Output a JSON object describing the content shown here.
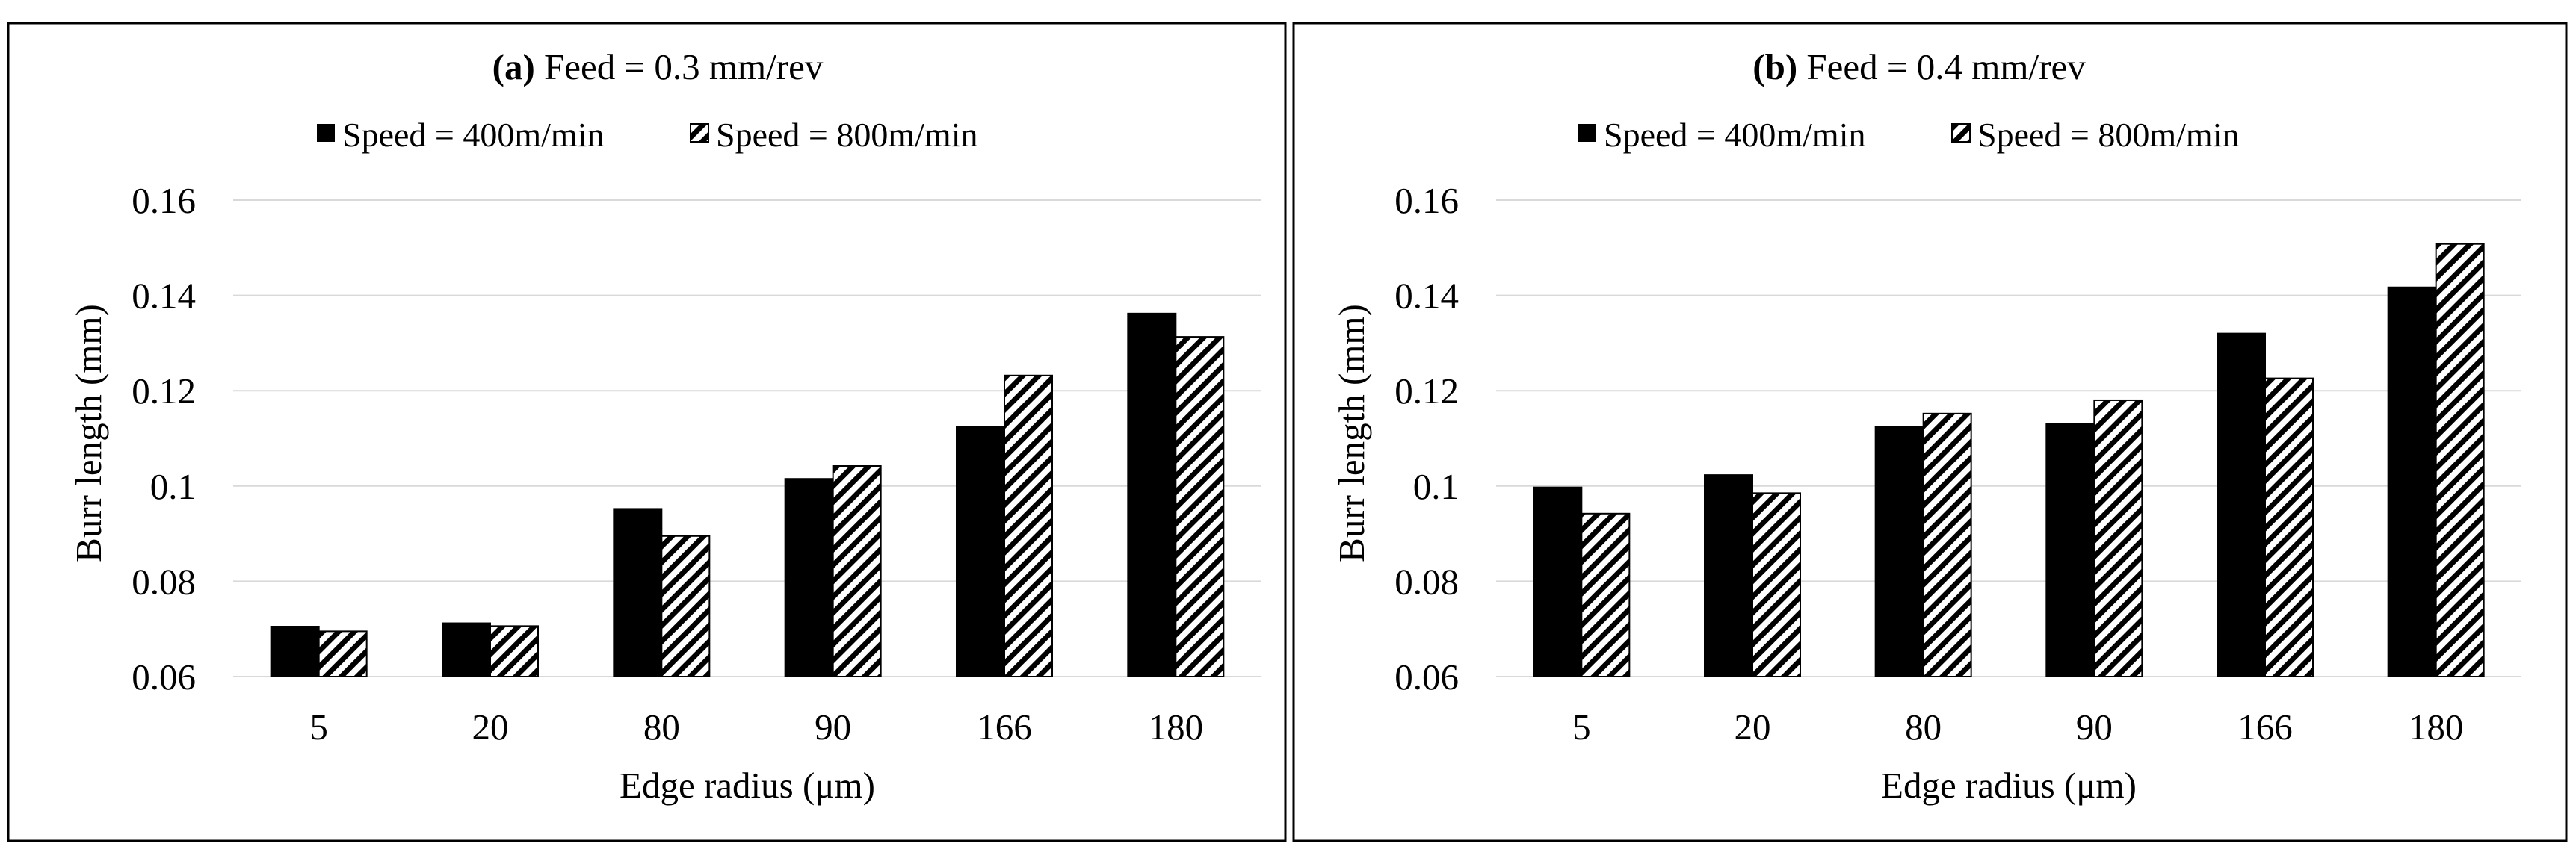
{
  "chart_data": [
    {
      "type": "bar",
      "title_bold": "(a)",
      "title_rest": " Feed = 0.3 mm/rev",
      "xlabel": "Edge radius (μm)",
      "ylabel": "Burr length (mm)",
      "ylim": [
        0.06,
        0.16
      ],
      "yticks": [
        0.06,
        0.08,
        0.1,
        0.12,
        0.14,
        0.16
      ],
      "ytick_labels": [
        "0.06",
        "0.08",
        "0.1",
        "0.12",
        "0.14",
        "0.16"
      ],
      "grid": true,
      "legend_position": "top-center",
      "categories": [
        "5",
        "20",
        "80",
        "90",
        "166",
        "180"
      ],
      "series": [
        {
          "name": "Speed = 400m/min",
          "fill": "solid",
          "values": [
            0.0705,
            0.0712,
            0.0952,
            0.1015,
            0.1125,
            0.1362
          ]
        },
        {
          "name": "Speed = 800m/min",
          "fill": "hatch",
          "values": [
            0.0695,
            0.0706,
            0.0895,
            0.1042,
            0.1232,
            0.1313
          ]
        }
      ]
    },
    {
      "type": "bar",
      "title_bold": "(b)",
      "title_rest": " Feed = 0.4 mm/rev",
      "xlabel": "Edge radius (μm)",
      "ylabel": "Burr length (mm)",
      "ylim": [
        0.06,
        0.16
      ],
      "yticks": [
        0.06,
        0.08,
        0.1,
        0.12,
        0.14,
        0.16
      ],
      "ytick_labels": [
        "0.06",
        "0.08",
        "0.1",
        "0.12",
        "0.14",
        "0.16"
      ],
      "grid": true,
      "legend_position": "top-center",
      "categories": [
        "5",
        "20",
        "80",
        "90",
        "166",
        "180"
      ],
      "series": [
        {
          "name": "Speed = 400m/min",
          "fill": "solid",
          "values": [
            0.0997,
            0.1023,
            0.1125,
            0.113,
            0.132,
            0.1417
          ]
        },
        {
          "name": "Speed = 800m/min",
          "fill": "hatch",
          "values": [
            0.0942,
            0.0985,
            0.1152,
            0.118,
            0.1226,
            0.1508
          ]
        }
      ]
    }
  ],
  "colors": {
    "bar": "#000000",
    "grid": "#d9d9d9",
    "frame": "#000000",
    "background": "#ffffff"
  }
}
